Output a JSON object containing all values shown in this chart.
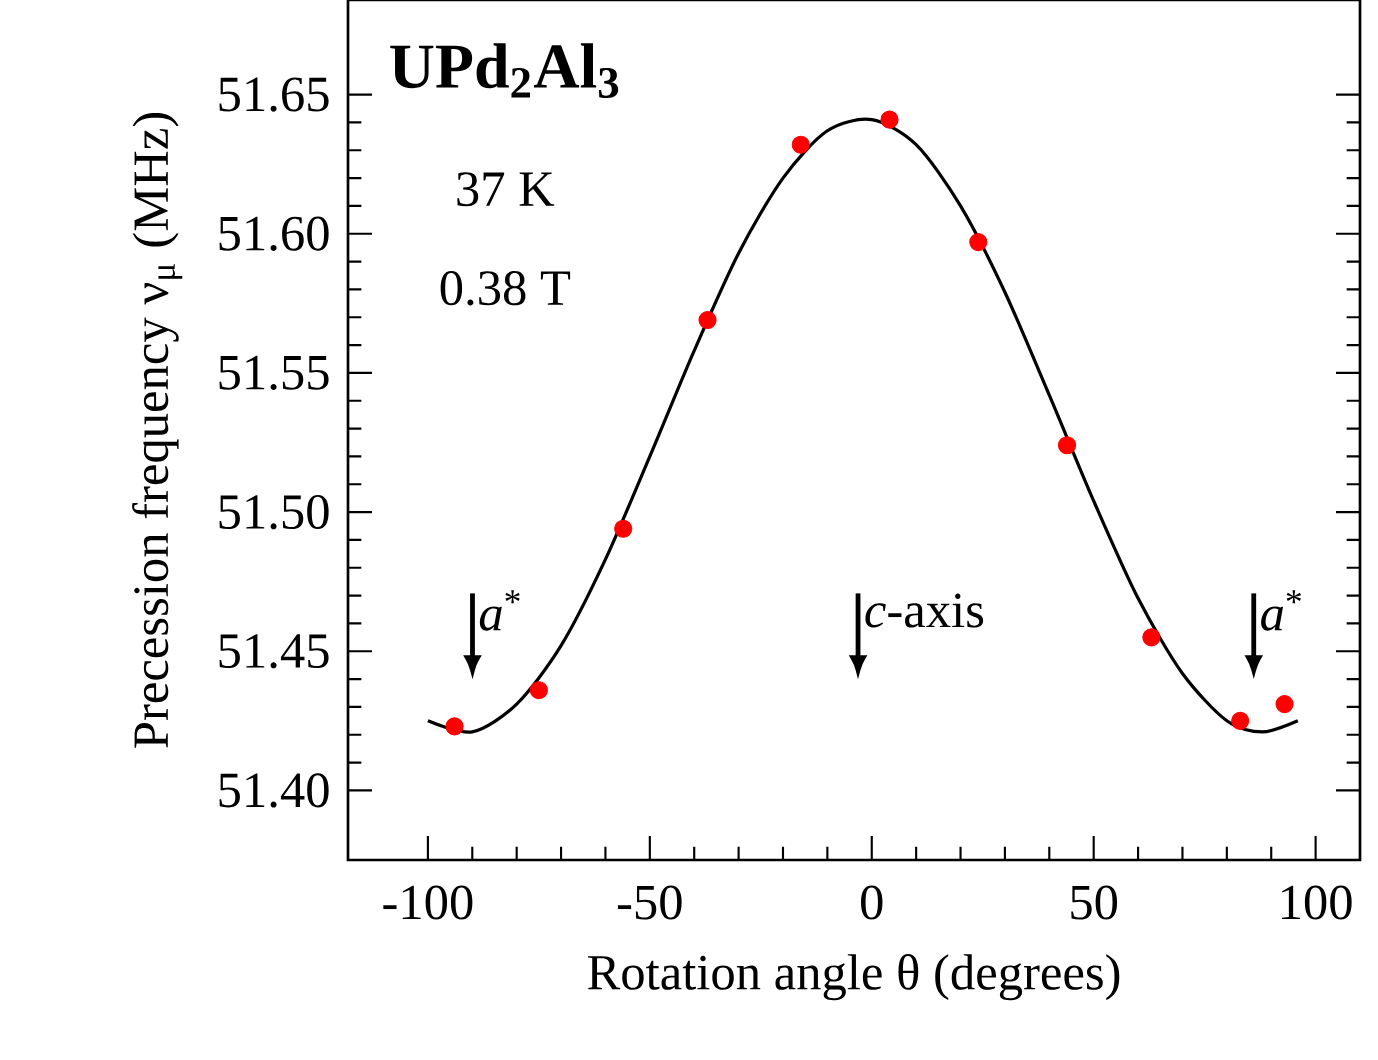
{
  "chart_data": {
    "type": "scatter",
    "title": "UPd$_{2}$Al$_{3}$",
    "annotations": [
      "37 K",
      "0.38 T",
      "*a*$^{*}$",
      "*c*-axis",
      "*a*$^{*}$"
    ],
    "xlabel": "Rotation angle θ (degrees)",
    "ylabel": "Precession frequency ν$_{μ}$ (MHz)",
    "xlim": [
      -118,
      110
    ],
    "ylim": [
      51.375,
      51.684
    ],
    "xticks": [
      -100,
      -50,
      0,
      50,
      100
    ],
    "yticks": [
      {
        "value": 51.4,
        "label": "51.40"
      },
      51.45,
      {
        "value": 51.5,
        "label": "51.50"
      },
      51.55,
      {
        "value": 51.6,
        "label": "51.60"
      },
      51.65
    ],
    "series": [
      {
        "type": "line",
        "color": "#000000",
        "marker": "none",
        "line_style": "solid",
        "x": [
          -100,
          -90,
          -80,
          -70,
          -60,
          -50,
          -40,
          -30,
          -20,
          -10,
          0,
          10,
          20,
          30,
          40,
          50,
          60,
          70,
          80,
          88,
          96
        ],
        "values": [
          51.425,
          51.421,
          51.431,
          51.452,
          51.483,
          51.52,
          51.558,
          51.593,
          51.62,
          51.637,
          51.641,
          51.632,
          51.61,
          51.579,
          51.542,
          51.504,
          51.469,
          51.442,
          51.425,
          51.421,
          51.425
        ]
      },
      {
        "color": "#ff0000",
        "marker": "circle",
        "x": [
          -94,
          -75,
          -56,
          -37,
          -16,
          4,
          24,
          44,
          63,
          83,
          93
        ],
        "values": [
          51.423,
          51.436,
          51.494,
          51.569,
          51.632,
          51.641,
          51.597,
          51.524,
          51.455,
          51.425,
          51.431
        ]
      }
    ]
  }
}
